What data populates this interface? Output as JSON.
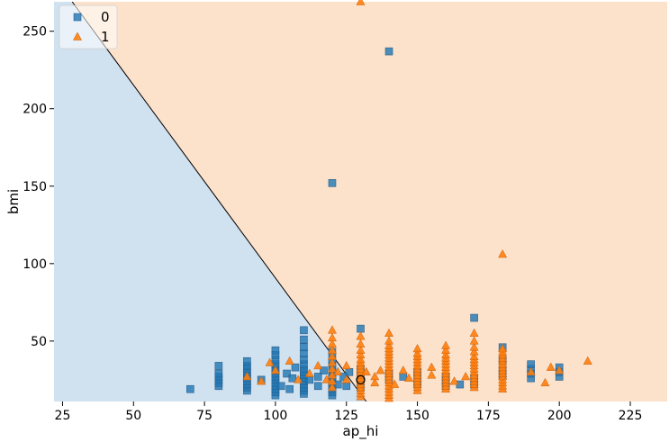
{
  "chart_data": {
    "type": "scatter",
    "title": "",
    "xlabel": "ap_hi",
    "ylabel": "bmi",
    "xlim": [
      22,
      238
    ],
    "ylim": [
      11,
      269
    ],
    "x_ticks": [
      25,
      50,
      75,
      100,
      125,
      150,
      175,
      200,
      225
    ],
    "y_ticks": [
      50,
      100,
      150,
      200,
      250
    ],
    "grid": false,
    "legend_position": "top-left",
    "decision_boundary": {
      "points": [
        [
          26,
          275
        ],
        [
          132,
          11
        ]
      ],
      "region_colors": [
        "#d0e1ef",
        "#fde2cb"
      ]
    },
    "highlighted_point": {
      "x": 130,
      "y": 25
    },
    "series": [
      {
        "name": "0",
        "marker": "square",
        "color": "#1f77b4",
        "points": [
          [
            70,
            19
          ],
          [
            80,
            21
          ],
          [
            80,
            23
          ],
          [
            80,
            25
          ],
          [
            80,
            27
          ],
          [
            80,
            29
          ],
          [
            80,
            34
          ],
          [
            90,
            18
          ],
          [
            90,
            20
          ],
          [
            90,
            22
          ],
          [
            90,
            24
          ],
          [
            90,
            26
          ],
          [
            90,
            28
          ],
          [
            90,
            30
          ],
          [
            90,
            32
          ],
          [
            90,
            34
          ],
          [
            90,
            37
          ],
          [
            95,
            25
          ],
          [
            100,
            15
          ],
          [
            100,
            17
          ],
          [
            100,
            19
          ],
          [
            100,
            21
          ],
          [
            100,
            23
          ],
          [
            100,
            25
          ],
          [
            100,
            27
          ],
          [
            100,
            29
          ],
          [
            100,
            31
          ],
          [
            100,
            33
          ],
          [
            100,
            35
          ],
          [
            100,
            38
          ],
          [
            100,
            41
          ],
          [
            100,
            44
          ],
          [
            102,
            21
          ],
          [
            104,
            29
          ],
          [
            105,
            19
          ],
          [
            106,
            26
          ],
          [
            107,
            33
          ],
          [
            110,
            16
          ],
          [
            110,
            18
          ],
          [
            110,
            20
          ],
          [
            110,
            22
          ],
          [
            110,
            24
          ],
          [
            110,
            26
          ],
          [
            110,
            28
          ],
          [
            110,
            30
          ],
          [
            110,
            32
          ],
          [
            110,
            35
          ],
          [
            110,
            38
          ],
          [
            110,
            42
          ],
          [
            110,
            46
          ],
          [
            110,
            51
          ],
          [
            110,
            57
          ],
          [
            112,
            25
          ],
          [
            115,
            21
          ],
          [
            115,
            27
          ],
          [
            117,
            31
          ],
          [
            120,
            15
          ],
          [
            120,
            17
          ],
          [
            120,
            19
          ],
          [
            120,
            21
          ],
          [
            120,
            23
          ],
          [
            120,
            25
          ],
          [
            120,
            27
          ],
          [
            120,
            29
          ],
          [
            120,
            31
          ],
          [
            120,
            34
          ],
          [
            120,
            38
          ],
          [
            120,
            43
          ],
          [
            120,
            152
          ],
          [
            122,
            22
          ],
          [
            124,
            27
          ],
          [
            125,
            21
          ],
          [
            126,
            30
          ],
          [
            130,
            20
          ],
          [
            130,
            24
          ],
          [
            130,
            28
          ],
          [
            130,
            32
          ],
          [
            130,
            58
          ],
          [
            140,
            25
          ],
          [
            140,
            29
          ],
          [
            140,
            237
          ],
          [
            145,
            27
          ],
          [
            150,
            22
          ],
          [
            150,
            26
          ],
          [
            150,
            30
          ],
          [
            160,
            21
          ],
          [
            160,
            24
          ],
          [
            160,
            27
          ],
          [
            165,
            22
          ],
          [
            170,
            22
          ],
          [
            170,
            26
          ],
          [
            170,
            65
          ],
          [
            180,
            28
          ],
          [
            180,
            32
          ],
          [
            180,
            38
          ],
          [
            180,
            46
          ],
          [
            190,
            26
          ],
          [
            190,
            29
          ],
          [
            190,
            32
          ],
          [
            190,
            35
          ],
          [
            200,
            27
          ],
          [
            200,
            30
          ],
          [
            200,
            33
          ]
        ]
      },
      {
        "name": "1",
        "marker": "triangle",
        "color": "#ff7f0e",
        "points": [
          [
            90,
            27
          ],
          [
            95,
            24
          ],
          [
            98,
            36
          ],
          [
            100,
            31
          ],
          [
            105,
            37
          ],
          [
            108,
            25
          ],
          [
            112,
            29
          ],
          [
            115,
            34
          ],
          [
            118,
            25
          ],
          [
            120,
            20
          ],
          [
            120,
            24
          ],
          [
            120,
            28
          ],
          [
            120,
            32
          ],
          [
            120,
            36
          ],
          [
            120,
            40
          ],
          [
            120,
            44
          ],
          [
            120,
            48
          ],
          [
            120,
            52
          ],
          [
            120,
            57
          ],
          [
            122,
            30
          ],
          [
            125,
            25
          ],
          [
            125,
            34
          ],
          [
            130,
            14
          ],
          [
            130,
            16
          ],
          [
            130,
            18
          ],
          [
            130,
            20
          ],
          [
            130,
            22
          ],
          [
            130,
            24
          ],
          [
            130,
            26
          ],
          [
            130,
            28
          ],
          [
            130,
            30
          ],
          [
            130,
            32
          ],
          [
            130,
            34
          ],
          [
            130,
            36
          ],
          [
            130,
            38
          ],
          [
            130,
            41
          ],
          [
            130,
            44
          ],
          [
            130,
            48
          ],
          [
            130,
            53
          ],
          [
            130,
            269
          ],
          [
            132,
            30
          ],
          [
            135,
            23
          ],
          [
            135,
            27
          ],
          [
            137,
            31
          ],
          [
            140,
            13
          ],
          [
            140,
            15
          ],
          [
            140,
            17
          ],
          [
            140,
            19
          ],
          [
            140,
            21
          ],
          [
            140,
            23
          ],
          [
            140,
            25
          ],
          [
            140,
            27
          ],
          [
            140,
            29
          ],
          [
            140,
            31
          ],
          [
            140,
            33
          ],
          [
            140,
            35
          ],
          [
            140,
            37
          ],
          [
            140,
            39
          ],
          [
            140,
            41
          ],
          [
            140,
            43
          ],
          [
            140,
            45
          ],
          [
            140,
            47
          ],
          [
            140,
            50
          ],
          [
            140,
            55
          ],
          [
            142,
            22
          ],
          [
            145,
            31
          ],
          [
            147,
            26
          ],
          [
            150,
            18
          ],
          [
            150,
            20
          ],
          [
            150,
            22
          ],
          [
            150,
            24
          ],
          [
            150,
            26
          ],
          [
            150,
            28
          ],
          [
            150,
            30
          ],
          [
            150,
            32
          ],
          [
            150,
            34
          ],
          [
            150,
            36
          ],
          [
            150,
            38
          ],
          [
            150,
            40
          ],
          [
            150,
            42
          ],
          [
            150,
            45
          ],
          [
            155,
            28
          ],
          [
            155,
            33
          ],
          [
            160,
            19
          ],
          [
            160,
            21
          ],
          [
            160,
            23
          ],
          [
            160,
            25
          ],
          [
            160,
            27
          ],
          [
            160,
            29
          ],
          [
            160,
            31
          ],
          [
            160,
            33
          ],
          [
            160,
            35
          ],
          [
            160,
            37
          ],
          [
            160,
            39
          ],
          [
            160,
            41
          ],
          [
            160,
            44
          ],
          [
            160,
            47
          ],
          [
            163,
            24
          ],
          [
            167,
            27
          ],
          [
            170,
            20
          ],
          [
            170,
            22
          ],
          [
            170,
            24
          ],
          [
            170,
            26
          ],
          [
            170,
            28
          ],
          [
            170,
            30
          ],
          [
            170,
            32
          ],
          [
            170,
            34
          ],
          [
            170,
            36
          ],
          [
            170,
            38
          ],
          [
            170,
            40
          ],
          [
            170,
            43
          ],
          [
            170,
            46
          ],
          [
            170,
            50
          ],
          [
            170,
            55
          ],
          [
            180,
            19
          ],
          [
            180,
            21
          ],
          [
            180,
            23
          ],
          [
            180,
            25
          ],
          [
            180,
            27
          ],
          [
            180,
            29
          ],
          [
            180,
            31
          ],
          [
            180,
            33
          ],
          [
            180,
            35
          ],
          [
            180,
            37
          ],
          [
            180,
            39
          ],
          [
            180,
            41
          ],
          [
            180,
            43
          ],
          [
            180,
            45
          ],
          [
            180,
            106
          ],
          [
            190,
            30
          ],
          [
            195,
            23
          ],
          [
            197,
            33
          ],
          [
            200,
            31
          ],
          [
            210,
            37
          ]
        ]
      }
    ]
  }
}
